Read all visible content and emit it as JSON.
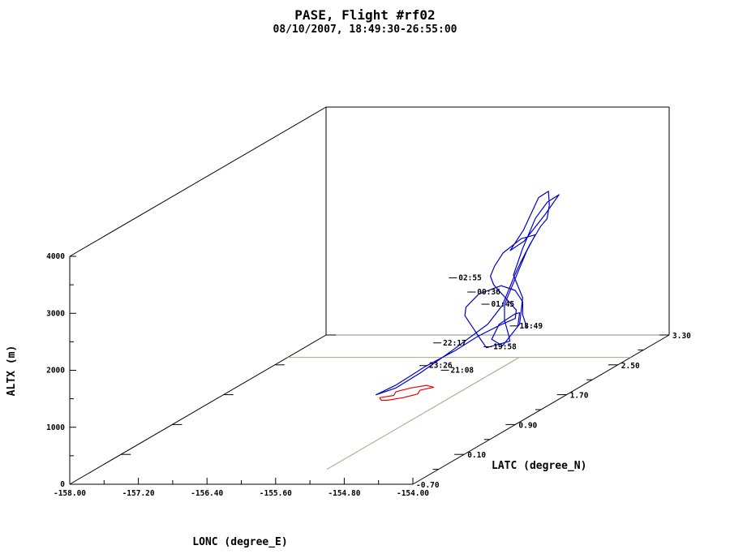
{
  "chart_data": {
    "type": "line",
    "projection": "3d",
    "title": "PASE, Flight #rf02",
    "subtitle": "08/10/2007, 18:49:30-26:55:00",
    "xlabel": "LONC (degree_E)",
    "ylabel": "LATC (degree_N)",
    "zlabel": "ALTX (m)",
    "xlim": [
      -158.0,
      -154.0
    ],
    "ylim": [
      -0.7,
      3.3
    ],
    "zlim": [
      0,
      4000
    ],
    "x_ticks": [
      "-158.00",
      "-157.20",
      "-156.40",
      "-155.60",
      "-154.80",
      "-154.00"
    ],
    "y_ticks": [
      "-0.70",
      "0.10",
      "0.90",
      "1.70",
      "2.50",
      "3.30"
    ],
    "z_ticks": [
      "0",
      "1000",
      "2000",
      "3000",
      "4000"
    ],
    "colors": {
      "flight_track": "#0000cc",
      "ground_track": "#ee0000",
      "axes": "#000000",
      "guides": "#b0a080"
    },
    "series": [
      {
        "role": "flight_track",
        "points": [
          [
            -154.12,
            1.1,
            1600
          ],
          [
            -154.25,
            1.3,
            1700
          ],
          [
            -154.45,
            1.5,
            1550
          ],
          [
            -154.6,
            1.45,
            1400
          ],
          [
            -154.5,
            1.2,
            1300
          ],
          [
            -154.3,
            1.1,
            1250
          ],
          [
            -154.25,
            1.3,
            1500
          ],
          [
            -154.4,
            1.55,
            1800
          ],
          [
            -154.62,
            1.7,
            2100
          ],
          [
            -154.7,
            1.95,
            2400
          ],
          [
            -154.7,
            2.15,
            2800
          ],
          [
            -154.6,
            2.2,
            3050
          ],
          [
            -154.5,
            2.25,
            3150
          ],
          [
            -154.55,
            2.1,
            2900
          ],
          [
            -154.72,
            2.0,
            2500
          ],
          [
            -154.92,
            2.05,
            2300
          ],
          [
            -154.95,
            2.3,
            2500
          ],
          [
            -154.85,
            2.4,
            3000
          ],
          [
            -154.75,
            2.42,
            3100
          ],
          [
            -154.8,
            2.5,
            2800
          ],
          [
            -154.9,
            2.6,
            2500
          ],
          [
            -155.05,
            2.7,
            2300
          ],
          [
            -155.1,
            2.6,
            2050
          ],
          [
            -155.02,
            2.35,
            1900
          ],
          [
            -154.9,
            2.1,
            1850
          ],
          [
            -154.8,
            1.9,
            1800
          ],
          [
            -154.7,
            1.7,
            1750
          ],
          [
            -154.6,
            1.5,
            1700
          ],
          [
            -154.62,
            1.3,
            1500
          ],
          [
            -154.85,
            1.05,
            1200
          ],
          [
            -155.0,
            0.75,
            1000
          ],
          [
            -155.1,
            0.5,
            900
          ],
          [
            -155.25,
            0.4,
            850
          ],
          [
            -155.1,
            0.5,
            950
          ],
          [
            -154.9,
            0.7,
            1150
          ],
          [
            -154.7,
            0.9,
            1300
          ],
          [
            -154.55,
            1.05,
            1450
          ],
          [
            -154.4,
            1.2,
            1550
          ],
          [
            -154.3,
            1.3,
            1600
          ],
          [
            -154.4,
            1.45,
            1650
          ],
          [
            -154.6,
            1.6,
            1700
          ],
          [
            -154.8,
            1.75,
            1750
          ],
          [
            -155.0,
            1.9,
            1800
          ],
          [
            -155.15,
            2.05,
            1850
          ],
          [
            -155.25,
            2.25,
            1900
          ],
          [
            -155.3,
            2.45,
            2000
          ],
          [
            -155.2,
            2.6,
            2150
          ],
          [
            -155.0,
            2.55,
            2250
          ],
          [
            -154.95,
            2.35,
            2100
          ],
          [
            -154.85,
            2.1,
            1950
          ],
          [
            -154.75,
            1.85,
            1800
          ],
          [
            -154.65,
            1.6,
            1650
          ],
          [
            -154.5,
            1.4,
            1500
          ],
          [
            -154.35,
            1.25,
            1400
          ],
          [
            -154.25,
            1.15,
            1300
          ],
          [
            -154.45,
            1.05,
            1250
          ],
          [
            -154.6,
            1.15,
            1350
          ],
          [
            -154.8,
            1.3,
            1450
          ],
          [
            -155.0,
            1.45,
            1550
          ],
          [
            -155.1,
            1.6,
            1600
          ],
          [
            -155.1,
            1.8,
            1700
          ],
          [
            -154.95,
            1.95,
            1750
          ],
          [
            -154.75,
            1.9,
            1700
          ],
          [
            -154.55,
            1.75,
            1600
          ],
          [
            -154.4,
            1.55,
            1500
          ],
          [
            -154.2,
            1.35,
            1400
          ]
        ]
      },
      {
        "role": "ground_track",
        "points": [
          [
            -155.98,
            1.55,
            0
          ],
          [
            -155.85,
            1.62,
            0
          ],
          [
            -155.75,
            1.72,
            0
          ],
          [
            -155.8,
            1.82,
            0
          ],
          [
            -155.7,
            1.9,
            0
          ],
          [
            -155.82,
            1.95,
            0
          ],
          [
            -155.95,
            1.88,
            0
          ],
          [
            -156.05,
            1.78,
            0
          ],
          [
            -156.0,
            1.68,
            0
          ],
          [
            -156.12,
            1.62,
            0
          ],
          [
            -156.05,
            1.55,
            0
          ],
          [
            -155.98,
            1.55,
            0
          ]
        ]
      }
    ],
    "annotations": [
      {
        "label": "18:49",
        "x": -154.12,
        "y": 1.1,
        "z": 1600
      },
      {
        "label": "19:58",
        "x": -154.35,
        "y": 1.0,
        "z": 1300
      },
      {
        "label": "21:08",
        "x": -154.55,
        "y": 0.6,
        "z": 1150
      },
      {
        "label": "22:17",
        "x": -154.9,
        "y": 0.95,
        "z": 1400
      },
      {
        "label": "23:26",
        "x": -154.95,
        "y": 0.8,
        "z": 1100
      },
      {
        "label": "00:36",
        "x": -154.95,
        "y": 1.55,
        "z": 1900
      },
      {
        "label": "01:45",
        "x": -154.6,
        "y": 1.3,
        "z": 1850
      },
      {
        "label": "02:55",
        "x": -155.28,
        "y": 1.7,
        "z": 2050
      }
    ]
  }
}
